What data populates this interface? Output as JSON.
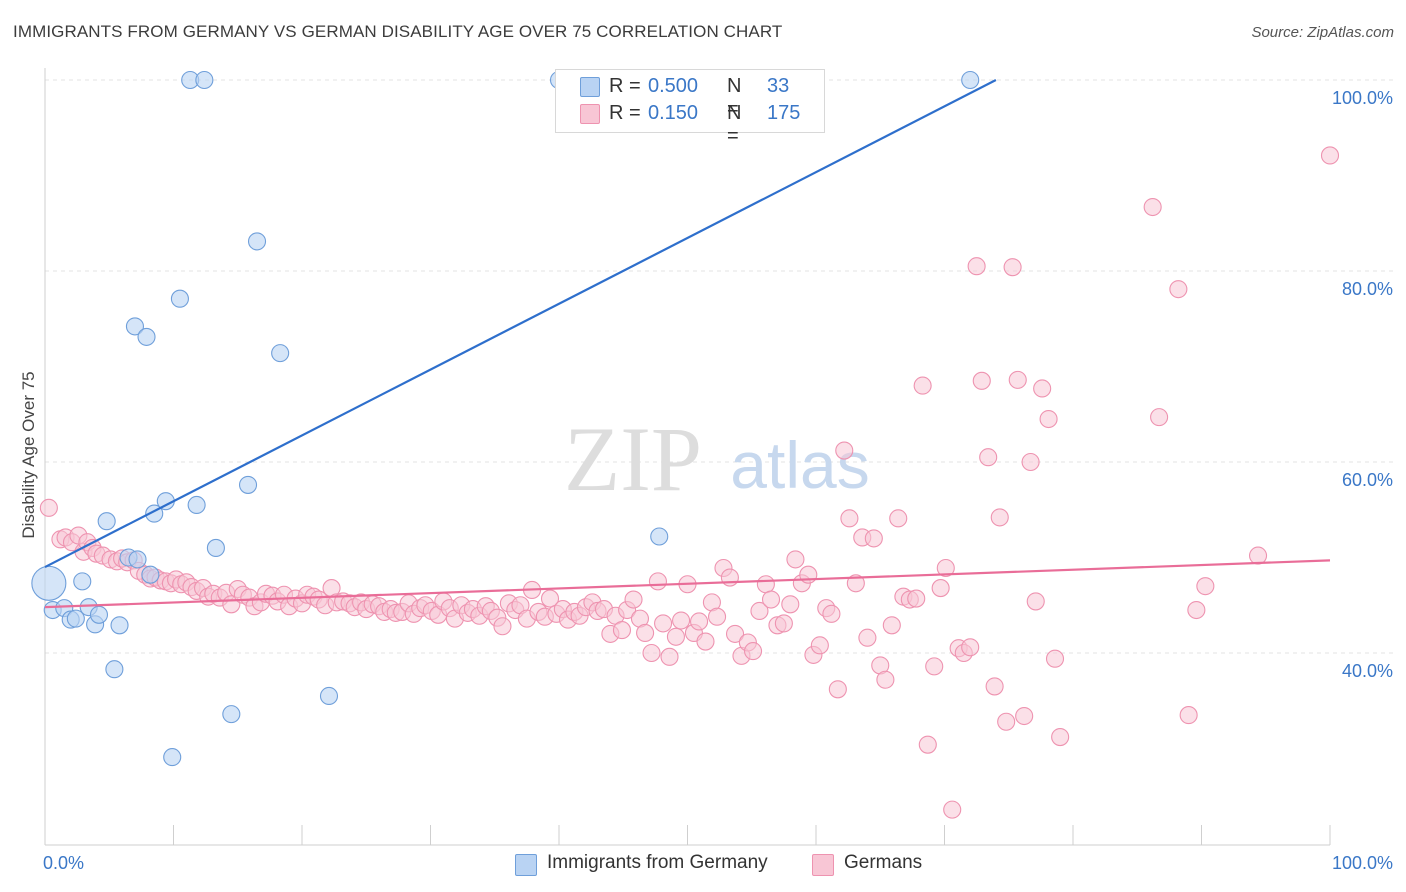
{
  "header": {
    "title": "IMMIGRANTS FROM GERMANY VS GERMAN DISABILITY AGE OVER 75 CORRELATION CHART",
    "source": "Source: ZipAtlas.com"
  },
  "watermark": {
    "zip": "ZIP",
    "atlas": "atlas"
  },
  "legend": {
    "rows": [
      {
        "r_label": "R =",
        "r_value": "0.500",
        "n_label": "N =",
        "n_value": "33",
        "color": "#b9d3f3"
      },
      {
        "r_label": "R =",
        "r_value": "0.150",
        "n_label": "N =",
        "n_value": "175",
        "color": "#f8c6d5"
      }
    ]
  },
  "bottom_legend": {
    "items": [
      {
        "label": "Immigrants from Germany",
        "color": "#b9d3f3"
      },
      {
        "label": "Germans",
        "color": "#f8c6d5"
      }
    ]
  },
  "chart_data": {
    "type": "scatter",
    "title": "IMMIGRANTS FROM GERMANY VS GERMAN DISABILITY AGE OVER 75 CORRELATION CHART",
    "xlabel": "",
    "ylabel": "Disability Age Over 75",
    "xlim": [
      0,
      100
    ],
    "ylim": [
      20,
      102
    ],
    "x_tick_labels": [
      "0.0%",
      "100.0%"
    ],
    "y_ticks": [
      40,
      60,
      80,
      100
    ],
    "y_tick_labels": [
      "40.0%",
      "60.0%",
      "80.0%",
      "100.0%"
    ],
    "grid": true,
    "legend_position": "top-center",
    "colors": {
      "blue_fill": "#b9d3f3",
      "blue_stroke": "#6f9fda",
      "blue_line": "#2e6fcc",
      "pink_fill": "#f8c6d5",
      "pink_stroke": "#ee93b0",
      "pink_line": "#e96d98",
      "tick_label": "#3a77c7",
      "grid": "#e3e3e3"
    },
    "series": [
      {
        "name": "Immigrants from Germany",
        "r": 0.5,
        "n": 33,
        "trend": {
          "x": [
            0,
            74
          ],
          "y": [
            49.0,
            100.0
          ]
        },
        "points": [
          [
            0.6,
            44.5
          ],
          [
            1.5,
            44.7
          ],
          [
            2.0,
            43.5
          ],
          [
            2.4,
            43.6
          ],
          [
            2.9,
            47.5
          ],
          [
            3.4,
            44.8
          ],
          [
            3.9,
            43.0
          ],
          [
            4.2,
            44.0
          ],
          [
            4.8,
            53.8
          ],
          [
            5.4,
            38.3
          ],
          [
            5.8,
            42.9
          ],
          [
            6.5,
            50.0
          ],
          [
            7.2,
            49.8
          ],
          [
            8.2,
            48.2
          ],
          [
            8.5,
            54.6
          ],
          [
            9.4,
            55.9
          ],
          [
            9.9,
            29.1
          ],
          [
            10.5,
            77.1
          ],
          [
            11.3,
            100.0
          ],
          [
            11.8,
            55.5
          ],
          [
            12.4,
            100.0
          ],
          [
            13.3,
            51.0
          ],
          [
            14.5,
            33.6
          ],
          [
            15.8,
            57.6
          ],
          [
            16.5,
            83.1
          ],
          [
            18.3,
            71.4
          ],
          [
            22.1,
            35.5
          ],
          [
            40.0,
            100.0
          ],
          [
            47.8,
            52.2
          ],
          [
            72.0,
            100.0
          ],
          [
            7.0,
            74.2
          ],
          [
            7.9,
            73.1
          ],
          [
            0.3,
            47.3
          ]
        ]
      },
      {
        "name": "Germans",
        "r": 0.15,
        "n": 175,
        "trend": {
          "x": [
            0,
            100
          ],
          "y": [
            44.8,
            49.7
          ]
        },
        "points": [
          [
            0.3,
            55.2
          ],
          [
            1.2,
            51.9
          ],
          [
            1.6,
            52.1
          ],
          [
            2.1,
            51.6
          ],
          [
            2.6,
            52.3
          ],
          [
            3.0,
            50.6
          ],
          [
            3.3,
            51.6
          ],
          [
            3.7,
            51.0
          ],
          [
            4.0,
            50.4
          ],
          [
            4.5,
            50.2
          ],
          [
            5.1,
            49.8
          ],
          [
            5.6,
            49.6
          ],
          [
            6.0,
            49.9
          ],
          [
            6.4,
            49.5
          ],
          [
            6.9,
            49.7
          ],
          [
            7.3,
            48.6
          ],
          [
            7.8,
            48.2
          ],
          [
            8.2,
            47.8
          ],
          [
            8.6,
            47.9
          ],
          [
            9.0,
            47.6
          ],
          [
            9.4,
            47.5
          ],
          [
            9.8,
            47.3
          ],
          [
            10.2,
            47.7
          ],
          [
            10.6,
            47.2
          ],
          [
            11.0,
            47.4
          ],
          [
            11.4,
            46.9
          ],
          [
            11.8,
            46.5
          ],
          [
            12.3,
            46.8
          ],
          [
            12.7,
            45.9
          ],
          [
            13.1,
            46.2
          ],
          [
            13.6,
            45.8
          ],
          [
            14.1,
            46.3
          ],
          [
            14.5,
            45.1
          ],
          [
            15.0,
            46.7
          ],
          [
            15.4,
            46.1
          ],
          [
            15.9,
            45.8
          ],
          [
            16.3,
            44.9
          ],
          [
            16.8,
            45.3
          ],
          [
            17.2,
            46.2
          ],
          [
            17.7,
            46.0
          ],
          [
            18.1,
            45.4
          ],
          [
            18.6,
            46.1
          ],
          [
            19.0,
            44.9
          ],
          [
            19.5,
            45.7
          ],
          [
            20.0,
            45.2
          ],
          [
            20.4,
            46.1
          ],
          [
            20.9,
            45.9
          ],
          [
            21.3,
            45.6
          ],
          [
            21.8,
            45.0
          ],
          [
            22.3,
            46.8
          ],
          [
            22.7,
            45.3
          ],
          [
            23.2,
            45.4
          ],
          [
            23.7,
            45.2
          ],
          [
            24.1,
            44.8
          ],
          [
            24.6,
            45.3
          ],
          [
            25.0,
            44.6
          ],
          [
            25.5,
            45.1
          ],
          [
            26.0,
            44.9
          ],
          [
            26.4,
            44.3
          ],
          [
            26.9,
            44.6
          ],
          [
            27.3,
            44.2
          ],
          [
            27.8,
            44.3
          ],
          [
            28.3,
            45.2
          ],
          [
            28.7,
            44.1
          ],
          [
            29.2,
            44.7
          ],
          [
            29.6,
            45.0
          ],
          [
            30.1,
            44.4
          ],
          [
            30.6,
            44.0
          ],
          [
            31.0,
            45.4
          ],
          [
            31.5,
            44.7
          ],
          [
            31.9,
            43.6
          ],
          [
            32.4,
            45.0
          ],
          [
            32.9,
            44.2
          ],
          [
            33.3,
            44.6
          ],
          [
            33.8,
            43.9
          ],
          [
            34.3,
            44.9
          ],
          [
            34.7,
            44.4
          ],
          [
            35.2,
            43.7
          ],
          [
            35.6,
            42.8
          ],
          [
            36.1,
            45.2
          ],
          [
            36.6,
            44.5
          ],
          [
            37.0,
            45.0
          ],
          [
            37.5,
            43.6
          ],
          [
            37.9,
            46.6
          ],
          [
            38.4,
            44.3
          ],
          [
            38.9,
            43.8
          ],
          [
            39.3,
            45.7
          ],
          [
            39.8,
            44.1
          ],
          [
            40.3,
            44.6
          ],
          [
            40.7,
            43.5
          ],
          [
            41.2,
            44.3
          ],
          [
            41.6,
            43.9
          ],
          [
            42.1,
            44.8
          ],
          [
            42.6,
            45.3
          ],
          [
            43.0,
            44.4
          ],
          [
            43.5,
            44.6
          ],
          [
            44.0,
            42.0
          ],
          [
            44.4,
            43.9
          ],
          [
            44.9,
            42.4
          ],
          [
            45.3,
            44.5
          ],
          [
            45.8,
            45.6
          ],
          [
            46.3,
            43.6
          ],
          [
            46.7,
            42.1
          ],
          [
            47.2,
            40.0
          ],
          [
            47.7,
            47.5
          ],
          [
            48.1,
            43.1
          ],
          [
            48.6,
            39.6
          ],
          [
            49.1,
            41.7
          ],
          [
            49.5,
            43.4
          ],
          [
            50.0,
            47.2
          ],
          [
            50.5,
            42.1
          ],
          [
            50.9,
            43.3
          ],
          [
            51.4,
            41.2
          ],
          [
            51.9,
            45.3
          ],
          [
            52.3,
            43.8
          ],
          [
            52.8,
            48.9
          ],
          [
            53.3,
            47.9
          ],
          [
            53.7,
            42.0
          ],
          [
            54.2,
            39.7
          ],
          [
            54.7,
            41.1
          ],
          [
            55.1,
            40.2
          ],
          [
            55.6,
            44.4
          ],
          [
            56.1,
            47.2
          ],
          [
            56.5,
            45.6
          ],
          [
            57.0,
            42.9
          ],
          [
            57.5,
            43.1
          ],
          [
            58.0,
            45.1
          ],
          [
            58.4,
            49.8
          ],
          [
            58.9,
            47.3
          ],
          [
            59.4,
            48.2
          ],
          [
            59.8,
            39.8
          ],
          [
            60.3,
            40.8
          ],
          [
            60.8,
            44.7
          ],
          [
            61.2,
            44.1
          ],
          [
            61.7,
            36.2
          ],
          [
            62.2,
            61.2
          ],
          [
            62.6,
            54.1
          ],
          [
            63.1,
            47.3
          ],
          [
            63.6,
            52.1
          ],
          [
            64.0,
            41.6
          ],
          [
            64.5,
            52.0
          ],
          [
            65.0,
            38.7
          ],
          [
            65.4,
            37.2
          ],
          [
            65.9,
            42.9
          ],
          [
            66.4,
            54.1
          ],
          [
            66.8,
            45.9
          ],
          [
            67.3,
            45.6
          ],
          [
            67.8,
            45.7
          ],
          [
            68.3,
            68.0
          ],
          [
            68.7,
            30.4
          ],
          [
            69.2,
            38.6
          ],
          [
            69.7,
            46.8
          ],
          [
            70.1,
            48.9
          ],
          [
            70.6,
            23.6
          ],
          [
            71.1,
            40.5
          ],
          [
            71.5,
            40.0
          ],
          [
            72.0,
            40.6
          ],
          [
            72.5,
            80.5
          ],
          [
            72.9,
            68.5
          ],
          [
            73.4,
            60.5
          ],
          [
            73.9,
            36.5
          ],
          [
            74.3,
            54.2
          ],
          [
            74.8,
            32.8
          ],
          [
            75.3,
            80.4
          ],
          [
            75.7,
            68.6
          ],
          [
            76.2,
            33.4
          ],
          [
            76.7,
            60.0
          ],
          [
            77.1,
            45.4
          ],
          [
            77.6,
            67.7
          ],
          [
            78.1,
            64.5
          ],
          [
            78.6,
            39.4
          ],
          [
            79.0,
            31.2
          ],
          [
            86.2,
            86.7
          ],
          [
            86.7,
            64.7
          ],
          [
            88.2,
            78.1
          ],
          [
            89.0,
            33.5
          ],
          [
            89.6,
            44.5
          ],
          [
            90.3,
            47.0
          ],
          [
            94.4,
            50.2
          ],
          [
            100.0,
            92.1
          ]
        ]
      }
    ]
  }
}
